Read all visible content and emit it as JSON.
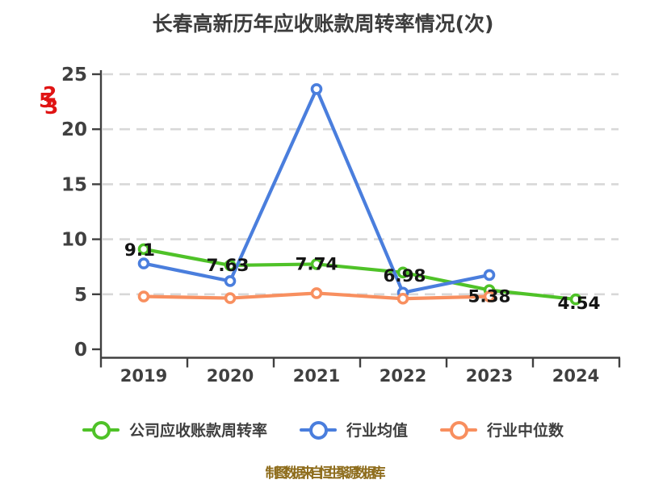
{
  "title": "长春高新历年应收账款周转率情况(次)",
  "caption": "制图数据来自恒生聚源数据库",
  "watermark": {
    "glyphs": [
      "2",
      "5",
      "3"
    ]
  },
  "colors": {
    "company": "#4fc228",
    "industry_mean": "#4a7edd",
    "industry_median": "#f88f5f",
    "axis": "#404040",
    "grid": "#d8d8d8",
    "title": "#3d3d3d",
    "value_label": "#141414",
    "caption": "#8f6e1e",
    "watermark": "#e01414",
    "dot_fill": "#ffffff"
  },
  "chart_data": {
    "type": "line",
    "title": "长春高新历年应收账款周转率情况(次)",
    "x": [
      "2019",
      "2020",
      "2021",
      "2022",
      "2023",
      "2024"
    ],
    "yticks": [
      0,
      5,
      10,
      15,
      20,
      25
    ],
    "ylim": [
      0,
      25
    ],
    "grid": "horizontal-dashed",
    "legend_position": "bottom",
    "series": [
      {
        "name": "公司应收账款周转率",
        "color_key": "company",
        "values": [
          9.1,
          7.63,
          7.74,
          6.98,
          5.38,
          4.54
        ],
        "labels": [
          "9.1",
          "7.63",
          "7.74",
          "6.98",
          "5.38",
          "4.54"
        ]
      },
      {
        "name": "行业均值",
        "color_key": "industry_mean",
        "values": [
          7.8,
          6.2,
          23.65,
          5.15,
          6.75,
          null
        ]
      },
      {
        "name": "行业中位数",
        "color_key": "industry_median",
        "values": [
          4.8,
          4.65,
          5.1,
          4.6,
          4.8,
          null
        ]
      }
    ]
  }
}
